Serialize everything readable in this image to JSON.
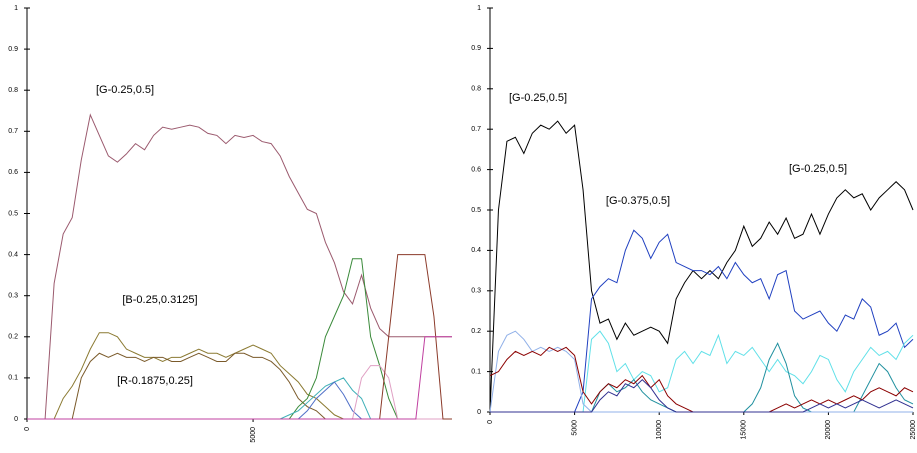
{
  "chart_data": [
    {
      "type": "line",
      "annotations": [
        "[G-0.25,0.5]",
        "[B-0.25,0.3125]",
        "[R-0.1875,0.25]"
      ],
      "x": [
        0,
        200,
        400,
        600,
        800,
        1000,
        1200,
        1400,
        1600,
        1800,
        2000,
        2200,
        2400,
        2600,
        2800,
        3000,
        3200,
        3400,
        3600,
        3800,
        4000,
        4200,
        4400,
        4600,
        4800,
        5000,
        5200,
        5400,
        5600,
        5800,
        6000,
        6200,
        6400,
        6600,
        6800,
        7000,
        7200,
        7400,
        7600,
        7800,
        8000,
        8200,
        8400,
        8600,
        8800,
        9000,
        9200,
        9400
      ],
      "xlim": [
        0,
        9400
      ],
      "xticks": [
        0,
        5000
      ],
      "ylim": [
        0,
        1
      ],
      "yticks": [
        0,
        0.1,
        0.2,
        0.3,
        0.4,
        0.5,
        0.6,
        0.7,
        0.8,
        0.9,
        1
      ],
      "series": [
        {
          "color": "#9b5a6e",
          "values": [
            0,
            0,
            0,
            0.33,
            0.45,
            0.49,
            0.63,
            0.74,
            0.69,
            0.64,
            0.625,
            0.645,
            0.67,
            0.655,
            0.69,
            0.71,
            0.705,
            0.71,
            0.715,
            0.71,
            0.695,
            0.69,
            0.67,
            0.69,
            0.685,
            0.69,
            0.675,
            0.67,
            0.64,
            0.59,
            0.55,
            0.51,
            0.5,
            0.43,
            0.38,
            0.31,
            0.28,
            0.35,
            0.27,
            0.22,
            0.2,
            0.2,
            0.2,
            0.2,
            0.2,
            0.2,
            0.2,
            0.2
          ]
        },
        {
          "color": "#8b7a32",
          "values": [
            0,
            0,
            0,
            0,
            0.05,
            0.08,
            0.12,
            0.17,
            0.21,
            0.21,
            0.2,
            0.17,
            0.16,
            0.15,
            0.15,
            0.14,
            0.15,
            0.15,
            0.16,
            0.17,
            0.16,
            0.16,
            0.15,
            0.16,
            0.17,
            0.18,
            0.17,
            0.16,
            0.13,
            0.11,
            0.09,
            0.06,
            0.05,
            0.03,
            0.01,
            0,
            0,
            0,
            0,
            0,
            0,
            0,
            0,
            0,
            0,
            0,
            0,
            0
          ]
        },
        {
          "color": "#7a5a2a",
          "values": [
            0,
            0,
            0,
            0,
            0,
            0,
            0.1,
            0.14,
            0.16,
            0.15,
            0.16,
            0.15,
            0.15,
            0.14,
            0.15,
            0.15,
            0.14,
            0.14,
            0.15,
            0.16,
            0.15,
            0.14,
            0.14,
            0.16,
            0.16,
            0.15,
            0.15,
            0.14,
            0.12,
            0.09,
            0.05,
            0.03,
            0.02,
            0,
            0,
            0,
            0,
            0,
            0,
            0,
            0,
            0,
            0,
            0,
            0,
            0,
            0,
            0
          ]
        },
        {
          "color": "#3a8a3a",
          "values": [
            0,
            0,
            0,
            0,
            0,
            0,
            0,
            0,
            0,
            0,
            0,
            0,
            0,
            0,
            0,
            0,
            0,
            0,
            0,
            0,
            0,
            0,
            0,
            0,
            0,
            0,
            0,
            0,
            0,
            0,
            0.03,
            0.05,
            0.1,
            0.2,
            0.25,
            0.3,
            0.39,
            0.39,
            0.2,
            0.13,
            0.05,
            0,
            0,
            0,
            0,
            0,
            0,
            0
          ]
        },
        {
          "color": "#40b0b8",
          "values": [
            0,
            0,
            0,
            0,
            0,
            0,
            0,
            0,
            0,
            0,
            0,
            0,
            0,
            0,
            0,
            0,
            0,
            0,
            0,
            0,
            0,
            0,
            0,
            0,
            0,
            0,
            0,
            0,
            0,
            0.01,
            0.02,
            0.04,
            0.06,
            0.08,
            0.09,
            0.1,
            0.07,
            0.05,
            0,
            0,
            0,
            0,
            0,
            0,
            0,
            0,
            0,
            0
          ]
        },
        {
          "color": "#5070c8",
          "values": [
            0,
            0,
            0,
            0,
            0,
            0,
            0,
            0,
            0,
            0,
            0,
            0,
            0,
            0,
            0,
            0,
            0,
            0,
            0,
            0,
            0,
            0,
            0,
            0,
            0,
            0,
            0,
            0,
            0,
            0,
            0,
            0.02,
            0.05,
            0.07,
            0.09,
            0.06,
            0.02,
            0,
            0,
            0,
            0,
            0,
            0,
            0,
            0,
            0,
            0,
            0
          ]
        },
        {
          "color": "#e0a0c4",
          "values": [
            0,
            0,
            0,
            0,
            0,
            0,
            0,
            0,
            0,
            0,
            0,
            0,
            0,
            0,
            0,
            0,
            0,
            0,
            0,
            0,
            0,
            0,
            0,
            0,
            0,
            0,
            0,
            0,
            0,
            0,
            0,
            0,
            0,
            0,
            0,
            0,
            0,
            0.1,
            0.13,
            0.13,
            0.1,
            0,
            0,
            0,
            0,
            0,
            0,
            0
          ]
        },
        {
          "color": "#8b3a2a",
          "values": [
            0,
            0,
            0,
            0,
            0,
            0,
            0,
            0,
            0,
            0,
            0,
            0,
            0,
            0,
            0,
            0,
            0,
            0,
            0,
            0,
            0,
            0,
            0,
            0,
            0,
            0,
            0,
            0,
            0,
            0,
            0,
            0,
            0,
            0,
            0,
            0,
            0,
            0,
            0,
            0,
            0.2,
            0.4,
            0.4,
            0.4,
            0.4,
            0.25,
            0,
            0
          ]
        },
        {
          "color": "#c040a0",
          "values": [
            0,
            0,
            0,
            0,
            0,
            0,
            0,
            0,
            0,
            0,
            0,
            0,
            0,
            0,
            0,
            0,
            0,
            0,
            0,
            0,
            0,
            0,
            0,
            0,
            0,
            0,
            0,
            0,
            0,
            0,
            0,
            0,
            0,
            0,
            0,
            0,
            0,
            0,
            0,
            0,
            0,
            0,
            0,
            0,
            0.2,
            0.2,
            0.2,
            0.2
          ]
        }
      ]
    },
    {
      "type": "line",
      "annotations": [
        "[G-0.25,0.5]",
        "[G-0.375,0.5]",
        "[G-0.25,0.5]"
      ],
      "x": [
        0,
        500,
        1000,
        1500,
        2000,
        2500,
        3000,
        3500,
        4000,
        4500,
        5000,
        5500,
        6000,
        6500,
        7000,
        7500,
        8000,
        8500,
        9000,
        9500,
        10000,
        10500,
        11000,
        11500,
        12000,
        12500,
        13000,
        13500,
        14000,
        14500,
        15000,
        15500,
        16000,
        16500,
        17000,
        17500,
        18000,
        18500,
        19000,
        19500,
        20000,
        20500,
        21000,
        21500,
        22000,
        22500,
        23000,
        23500,
        24000,
        24500,
        25000
      ],
      "xlim": [
        0,
        25000
      ],
      "xticks": [
        0,
        5000,
        10000,
        15000,
        20000,
        25000
      ],
      "ylim": [
        0,
        1
      ],
      "yticks": [
        0,
        0.1,
        0.2,
        0.3,
        0.4,
        0.5,
        0.6,
        0.7,
        0.8,
        0.9,
        1
      ],
      "series": [
        {
          "color": "#000000",
          "values": [
            0,
            0.5,
            0.67,
            0.68,
            0.64,
            0.69,
            0.71,
            0.7,
            0.72,
            0.69,
            0.71,
            0.55,
            0.3,
            0.22,
            0.23,
            0.18,
            0.22,
            0.19,
            0.2,
            0.21,
            0.2,
            0.17,
            0.28,
            0.32,
            0.35,
            0.33,
            0.35,
            0.33,
            0.37,
            0.4,
            0.46,
            0.41,
            0.43,
            0.47,
            0.44,
            0.48,
            0.43,
            0.44,
            0.49,
            0.44,
            0.49,
            0.53,
            0.55,
            0.53,
            0.54,
            0.5,
            0.53,
            0.55,
            0.57,
            0.55,
            0.5
          ]
        },
        {
          "color": "#2040c0",
          "values": [
            0,
            0,
            0,
            0,
            0,
            0,
            0,
            0,
            0,
            0,
            0,
            0.05,
            0.28,
            0.31,
            0.33,
            0.32,
            0.4,
            0.45,
            0.43,
            0.38,
            0.42,
            0.44,
            0.37,
            0.36,
            0.35,
            0.35,
            0.34,
            0.36,
            0.33,
            0.37,
            0.34,
            0.32,
            0.33,
            0.28,
            0.34,
            0.35,
            0.25,
            0.23,
            0.24,
            0.25,
            0.22,
            0.2,
            0.24,
            0.23,
            0.28,
            0.26,
            0.19,
            0.2,
            0.22,
            0.16,
            0.18
          ]
        },
        {
          "color": "#60e0e8",
          "values": [
            0,
            0,
            0,
            0,
            0,
            0,
            0,
            0,
            0,
            0,
            0,
            0,
            0.18,
            0.2,
            0.17,
            0.1,
            0.12,
            0.08,
            0.1,
            0.09,
            0.05,
            0.06,
            0.13,
            0.15,
            0.12,
            0.15,
            0.14,
            0.19,
            0.12,
            0.15,
            0.14,
            0.16,
            0.13,
            0.1,
            0.13,
            0.1,
            0.09,
            0.07,
            0.1,
            0.14,
            0.13,
            0.08,
            0.05,
            0.1,
            0.13,
            0.16,
            0.14,
            0.15,
            0.13,
            0.17,
            0.19
          ]
        },
        {
          "color": "#20909f",
          "values": [
            0,
            0,
            0,
            0,
            0,
            0,
            0,
            0,
            0,
            0,
            0,
            0,
            0,
            0.05,
            0.07,
            0.05,
            0.06,
            0.08,
            0.05,
            0.03,
            0.02,
            0.01,
            0,
            0,
            0,
            0,
            0,
            0,
            0,
            0,
            0,
            0.02,
            0.06,
            0.13,
            0.17,
            0.12,
            0.04,
            0.01,
            0,
            0,
            0,
            0,
            0,
            0,
            0.04,
            0.08,
            0.12,
            0.1,
            0.06,
            0.03,
            0.02
          ]
        },
        {
          "color": "#90b0e8",
          "values": [
            0,
            0.15,
            0.19,
            0.2,
            0.18,
            0.15,
            0.16,
            0.15,
            0.16,
            0.15,
            0.13,
            0.02,
            0,
            0,
            0,
            0,
            0,
            0,
            0,
            0,
            0,
            0,
            0,
            0,
            0,
            0,
            0,
            0,
            0,
            0,
            0,
            0,
            0,
            0,
            0,
            0,
            0,
            0,
            0,
            0,
            0,
            0,
            0,
            0,
            0,
            0,
            0,
            0,
            0,
            0,
            0
          ]
        },
        {
          "color": "#8b0000",
          "values": [
            0.09,
            0.1,
            0.13,
            0.15,
            0.14,
            0.15,
            0.14,
            0.16,
            0.15,
            0.16,
            0.14,
            0.05,
            0.02,
            0.05,
            0.07,
            0.06,
            0.08,
            0.07,
            0.09,
            0.06,
            0.08,
            0.04,
            0.02,
            0.01,
            0,
            0,
            0,
            0,
            0,
            0,
            0,
            0,
            0,
            0,
            0.01,
            0.02,
            0.01,
            0.02,
            0.03,
            0.02,
            0.03,
            0.02,
            0.03,
            0.04,
            0.03,
            0.05,
            0.06,
            0.05,
            0.04,
            0.06,
            0.05
          ]
        },
        {
          "color": "#303090",
          "values": [
            0,
            0,
            0,
            0,
            0,
            0,
            0,
            0,
            0,
            0,
            0,
            0,
            0,
            0.03,
            0.05,
            0.04,
            0.07,
            0.06,
            0.08,
            0.06,
            0.03,
            0.01,
            0,
            0,
            0,
            0,
            0,
            0,
            0,
            0,
            0,
            0,
            0,
            0,
            0,
            0,
            0,
            0,
            0.01,
            0.02,
            0.01,
            0.02,
            0.01,
            0.02,
            0.03,
            0.02,
            0.01,
            0.02,
            0.03,
            0.02,
            0.01
          ]
        }
      ]
    }
  ]
}
